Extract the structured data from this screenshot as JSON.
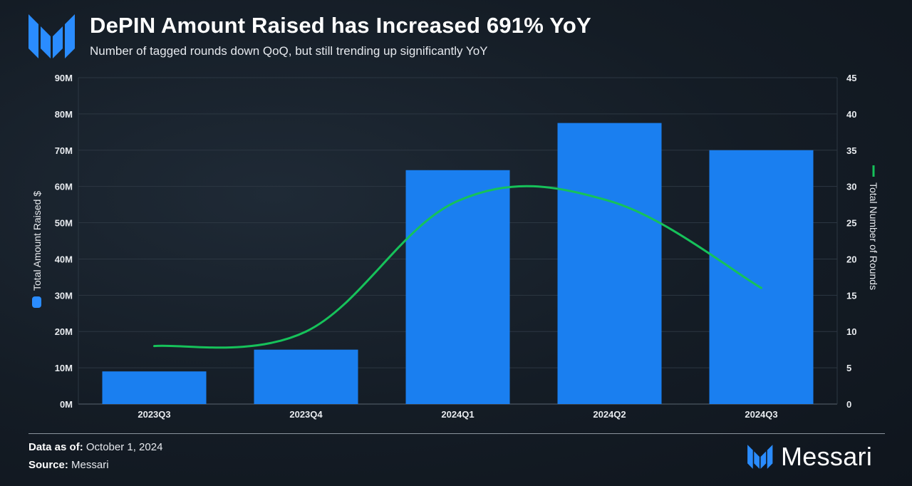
{
  "header": {
    "title": "DePIN Amount Raised has Increased 691% YoY",
    "subtitle": "Number of tagged rounds down QoQ, but still trending up significantly YoY"
  },
  "footer": {
    "date_label": "Data as of:",
    "date_value": "October 1, 2024",
    "source_label": "Source:",
    "source_value": "Messari",
    "brand": "Messari"
  },
  "colors": {
    "bar": "#1a7ff0",
    "line": "#16c25a",
    "grid": "#2c3742"
  },
  "chart_data": {
    "type": "bar",
    "categories": [
      "2023Q3",
      "2023Q4",
      "2024Q1",
      "2024Q2",
      "2024Q3"
    ],
    "series": [
      {
        "name": "Total Amount Raised $",
        "type": "bar",
        "axis": "left",
        "values": [
          9,
          15,
          64.5,
          77.5,
          70
        ]
      },
      {
        "name": "Total Number of Rounds",
        "type": "line",
        "axis": "right",
        "values": [
          8,
          10,
          28,
          28,
          16
        ]
      }
    ],
    "y_left": {
      "label": "Total Amount Raised $",
      "min": 0,
      "max": 90,
      "step": 10,
      "ticks": [
        "0M",
        "10M",
        "20M",
        "30M",
        "40M",
        "50M",
        "60M",
        "70M",
        "80M",
        "90M"
      ]
    },
    "y_right": {
      "label": "Total Number of Rounds",
      "min": 0,
      "max": 45,
      "step": 5,
      "ticks": [
        "0",
        "5",
        "10",
        "15",
        "20",
        "25",
        "30",
        "35",
        "40",
        "45"
      ]
    },
    "grid": true
  }
}
